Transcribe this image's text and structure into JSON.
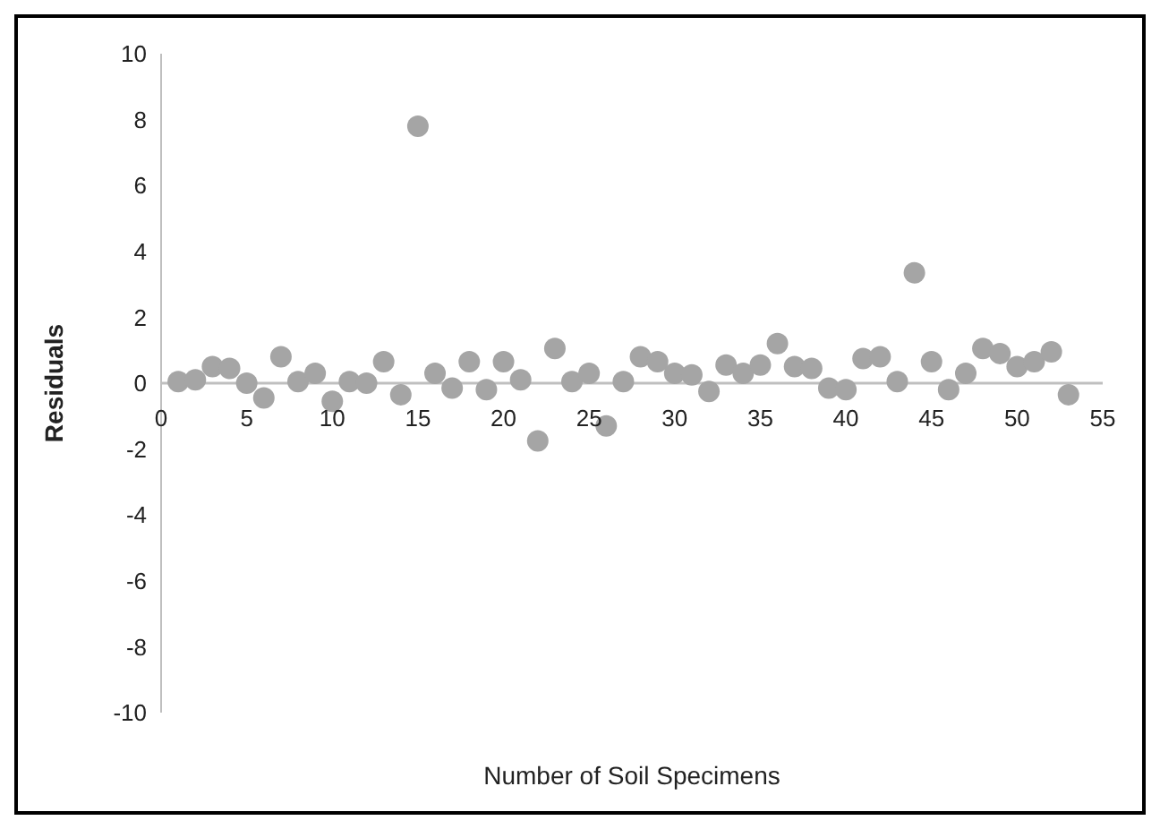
{
  "chart_data": {
    "type": "scatter",
    "xlabel": "Number of Soil Specimens",
    "ylabel": "Residuals",
    "x": [
      1,
      2,
      3,
      4,
      5,
      6,
      7,
      8,
      9,
      10,
      11,
      12,
      13,
      14,
      15,
      16,
      17,
      18,
      19,
      20,
      21,
      22,
      23,
      24,
      25,
      26,
      27,
      28,
      29,
      30,
      31,
      32,
      33,
      34,
      35,
      36,
      37,
      38,
      39,
      40,
      41,
      42,
      43,
      44,
      45,
      46,
      47,
      48,
      49,
      50,
      51,
      52,
      53
    ],
    "series": [
      {
        "color": "#a5a5a5",
        "values": [
          0.05,
          0.1,
          0.5,
          0.45,
          0.0,
          -0.45,
          0.8,
          0.05,
          0.3,
          -0.55,
          0.05,
          0.0,
          0.65,
          -0.35,
          7.8,
          0.3,
          -0.15,
          0.65,
          -0.2,
          0.65,
          0.1,
          -1.75,
          1.05,
          0.05,
          0.3,
          -1.3,
          0.05,
          0.8,
          0.65,
          0.3,
          0.25,
          -0.25,
          0.55,
          0.3,
          0.55,
          1.2,
          0.5,
          0.45,
          -0.15,
          -0.2,
          0.75,
          0.8,
          0.05,
          3.35,
          0.65,
          -0.2,
          0.3,
          1.05,
          0.9,
          0.5,
          0.65,
          0.95,
          -0.35
        ]
      }
    ],
    "xlim": [
      0,
      55
    ],
    "xticks": [
      0,
      5,
      10,
      15,
      20,
      25,
      30,
      35,
      40,
      45,
      50,
      55
    ],
    "ylim": [
      -10,
      10
    ],
    "yticks": [
      -10,
      -8,
      -6,
      -4,
      -2,
      0,
      2,
      4,
      6,
      8,
      10
    ],
    "grid": false,
    "legend": false,
    "marker": "circle"
  }
}
